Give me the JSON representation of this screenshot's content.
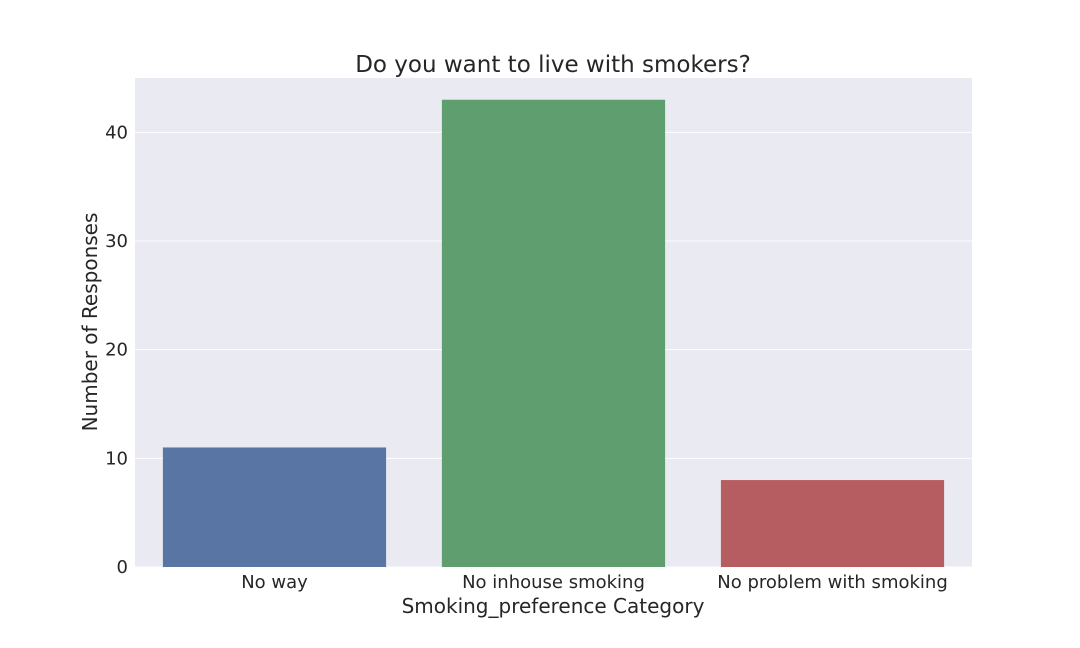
{
  "chart_data": {
    "type": "bar",
    "title": "Do you want to live with smokers?",
    "xlabel": "Smoking_preference Category",
    "ylabel": "Number of Responses",
    "categories": [
      "No way",
      "No inhouse smoking",
      "No problem with smoking"
    ],
    "values": [
      11,
      43,
      8
    ],
    "ylim": [
      0,
      45
    ],
    "yticks": [
      "0",
      "10",
      "20",
      "30",
      "40"
    ],
    "colors": [
      "#5975a4",
      "#5f9e6e",
      "#b55d60"
    ],
    "grid": true,
    "background_color": "#eaeaf2",
    "grid_color": "#ffffff"
  }
}
